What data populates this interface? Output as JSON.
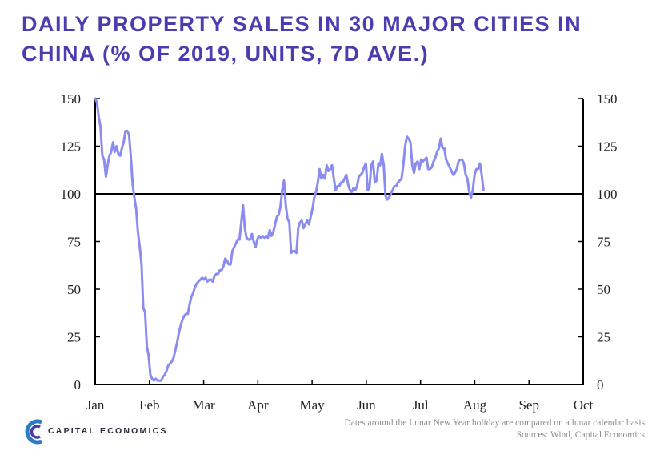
{
  "header": {
    "title_line1": "DAILY PROPERTY SALES IN 30 MAJOR CITIES IN",
    "title_line2": "CHINA (% OF 2019, UNITS, 7D AVE.)"
  },
  "footer": {
    "logo_text": "CAPITAL ECONOMICS",
    "note": "Dates around the Lunar New Year holiday are compared on a lunar calendar basis",
    "sources": "Sources: Wind, Capital Economics"
  },
  "colors": {
    "line": "#8b8cf0",
    "axis": "#000000",
    "brand": "#4a3db0"
  },
  "chart_data": {
    "type": "line",
    "title": "DAILY PROPERTY SALES IN 30 MAJOR CITIES IN CHINA (% OF 2019, UNITS, 7D AVE.)",
    "xlabel": "",
    "ylabel": "",
    "x_tick_labels": [
      "Jan",
      "Feb",
      "Mar",
      "Apr",
      "May",
      "Jun",
      "Jul",
      "Aug",
      "Sep",
      "Oct"
    ],
    "y_ticks": [
      0,
      25,
      50,
      75,
      100,
      125,
      150
    ],
    "ylim": [
      0,
      150
    ],
    "xlim": [
      0,
      274
    ],
    "x_unit": "day of year 2020 (0 = 1 Jan, 274 = 1 Oct)",
    "reference_line": 100,
    "grid": false,
    "secondary_y_axis": true,
    "series": [
      {
        "values": [
          [
            0,
            150
          ],
          [
            1,
            148
          ],
          [
            2,
            140
          ],
          [
            3,
            135
          ],
          [
            4,
            120
          ],
          [
            5,
            118
          ],
          [
            6,
            109
          ],
          [
            7,
            115
          ],
          [
            8,
            120
          ],
          [
            9,
            122
          ],
          [
            10,
            127
          ],
          [
            11,
            122
          ],
          [
            12,
            125
          ],
          [
            13,
            121
          ],
          [
            14,
            120
          ],
          [
            15,
            124
          ],
          [
            16,
            127
          ],
          [
            17,
            133
          ],
          [
            18,
            133
          ],
          [
            19,
            131
          ],
          [
            20,
            120
          ],
          [
            21,
            105
          ],
          [
            22,
            98
          ],
          [
            23,
            92
          ],
          [
            24,
            80
          ],
          [
            25,
            72
          ],
          [
            26,
            63
          ],
          [
            27,
            40
          ],
          [
            28,
            38
          ],
          [
            29,
            20
          ],
          [
            30,
            15
          ],
          [
            31,
            5
          ],
          [
            32,
            3
          ],
          [
            33,
            2
          ],
          [
            34,
            3
          ],
          [
            35,
            2
          ],
          [
            36,
            2
          ],
          [
            37,
            2
          ],
          [
            38,
            4
          ],
          [
            39,
            5
          ],
          [
            40,
            7
          ],
          [
            41,
            10
          ],
          [
            42,
            11
          ],
          [
            43,
            12
          ],
          [
            44,
            14
          ],
          [
            45,
            18
          ],
          [
            46,
            22
          ],
          [
            47,
            27
          ],
          [
            48,
            31
          ],
          [
            49,
            34
          ],
          [
            50,
            36
          ],
          [
            51,
            37
          ],
          [
            52,
            37
          ],
          [
            53,
            42
          ],
          [
            54,
            46
          ],
          [
            55,
            48
          ],
          [
            56,
            51
          ],
          [
            57,
            53
          ],
          [
            58,
            54
          ],
          [
            59,
            55
          ],
          [
            60,
            56
          ],
          [
            61,
            55
          ],
          [
            62,
            56
          ],
          [
            63,
            54
          ],
          [
            64,
            55
          ],
          [
            65,
            55
          ],
          [
            66,
            54
          ],
          [
            67,
            57
          ],
          [
            68,
            58
          ],
          [
            69,
            58
          ],
          [
            70,
            60
          ],
          [
            71,
            60
          ],
          [
            72,
            62
          ],
          [
            73,
            66
          ],
          [
            74,
            65
          ],
          [
            75,
            63
          ],
          [
            76,
            63
          ],
          [
            77,
            70
          ],
          [
            78,
            72
          ],
          [
            79,
            74
          ],
          [
            80,
            76
          ],
          [
            81,
            76
          ],
          [
            82,
            85
          ],
          [
            83,
            94
          ],
          [
            84,
            82
          ],
          [
            85,
            77
          ],
          [
            86,
            76
          ],
          [
            87,
            76
          ],
          [
            88,
            79
          ],
          [
            89,
            75
          ],
          [
            90,
            72
          ],
          [
            91,
            76
          ],
          [
            92,
            78
          ],
          [
            93,
            77
          ],
          [
            94,
            78
          ],
          [
            95,
            77
          ],
          [
            96,
            78
          ],
          [
            97,
            77
          ],
          [
            98,
            81
          ],
          [
            99,
            78
          ],
          [
            100,
            80
          ],
          [
            101,
            84
          ],
          [
            102,
            88
          ],
          [
            103,
            89
          ],
          [
            104,
            93
          ],
          [
            105,
            102
          ],
          [
            106,
            107
          ],
          [
            107,
            94
          ],
          [
            108,
            87
          ],
          [
            109,
            85
          ],
          [
            110,
            69
          ],
          [
            111,
            70
          ],
          [
            112,
            70
          ],
          [
            113,
            69
          ],
          [
            114,
            82
          ],
          [
            115,
            85
          ],
          [
            116,
            86
          ],
          [
            117,
            82
          ],
          [
            118,
            84
          ],
          [
            119,
            86
          ],
          [
            120,
            84
          ],
          [
            121,
            88
          ],
          [
            122,
            92
          ],
          [
            123,
            98
          ],
          [
            124,
            101
          ],
          [
            125,
            106
          ],
          [
            126,
            113
          ],
          [
            127,
            108
          ],
          [
            128,
            110
          ],
          [
            129,
            108
          ],
          [
            130,
            115
          ],
          [
            131,
            112
          ],
          [
            132,
            113
          ],
          [
            133,
            115
          ],
          [
            134,
            108
          ],
          [
            135,
            102
          ],
          [
            136,
            104
          ],
          [
            137,
            104
          ],
          [
            138,
            106
          ],
          [
            139,
            106
          ],
          [
            140,
            108
          ],
          [
            141,
            110
          ],
          [
            142,
            105
          ],
          [
            143,
            102
          ],
          [
            144,
            101
          ],
          [
            145,
            103
          ],
          [
            146,
            102
          ],
          [
            147,
            104
          ],
          [
            148,
            109
          ],
          [
            149,
            110
          ],
          [
            150,
            111
          ],
          [
            151,
            114
          ],
          [
            152,
            116
          ],
          [
            153,
            102
          ],
          [
            154,
            103
          ],
          [
            155,
            115
          ],
          [
            156,
            117
          ],
          [
            157,
            106
          ],
          [
            158,
            107
          ],
          [
            159,
            116
          ],
          [
            160,
            115
          ],
          [
            161,
            121
          ],
          [
            162,
            115
          ],
          [
            163,
            99
          ],
          [
            164,
            97
          ],
          [
            165,
            98
          ],
          [
            166,
            100
          ],
          [
            167,
            102
          ],
          [
            168,
            104
          ],
          [
            169,
            104
          ],
          [
            170,
            106
          ],
          [
            171,
            107
          ],
          [
            172,
            108
          ],
          [
            173,
            115
          ],
          [
            174,
            125
          ],
          [
            175,
            130
          ],
          [
            176,
            129
          ],
          [
            177,
            127
          ],
          [
            178,
            115
          ],
          [
            179,
            111
          ],
          [
            180,
            116
          ],
          [
            181,
            117
          ],
          [
            182,
            113
          ],
          [
            183,
            118
          ],
          [
            184,
            117
          ],
          [
            185,
            118
          ],
          [
            186,
            119
          ],
          [
            187,
            113
          ],
          [
            188,
            113
          ],
          [
            189,
            114
          ],
          [
            190,
            117
          ],
          [
            191,
            119
          ],
          [
            192,
            122
          ],
          [
            193,
            124
          ],
          [
            194,
            129
          ],
          [
            195,
            124
          ],
          [
            196,
            124
          ],
          [
            197,
            118
          ],
          [
            198,
            116
          ],
          [
            199,
            114
          ],
          [
            200,
            112
          ],
          [
            201,
            110
          ],
          [
            202,
            111
          ],
          [
            203,
            113
          ],
          [
            204,
            117
          ],
          [
            205,
            118
          ],
          [
            206,
            118
          ],
          [
            207,
            116
          ],
          [
            208,
            110
          ],
          [
            209,
            108
          ],
          [
            210,
            101
          ],
          [
            211,
            98
          ],
          [
            212,
            102
          ],
          [
            213,
            110
          ],
          [
            214,
            113
          ],
          [
            215,
            113
          ],
          [
            216,
            116
          ],
          [
            217,
            110
          ],
          [
            218,
            102
          ]
        ]
      }
    ]
  }
}
